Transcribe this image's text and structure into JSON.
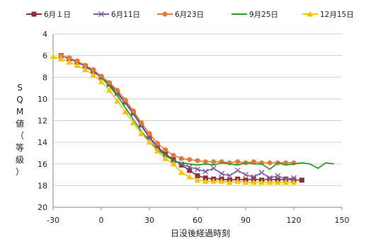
{
  "chart_data": {
    "type": "line",
    "title": "",
    "xlabel": "日没後経過時刻",
    "ylabel_chars": [
      "S",
      "Q",
      "M",
      "値",
      "（",
      "等",
      "級",
      "）"
    ],
    "xlim": [
      -30,
      150
    ],
    "ylim": [
      4,
      20
    ],
    "y_reversed": true,
    "x_ticks": [
      -30,
      0,
      30,
      60,
      90,
      120,
      150
    ],
    "y_ticks": [
      4,
      6,
      8,
      10,
      12,
      14,
      16,
      18,
      20
    ],
    "grid": "horizontal",
    "legend_position": "top",
    "series": [
      {
        "name": "6月１日",
        "color": "#8b2e3a",
        "marker": "square",
        "points": [
          [
            -25,
            6.0
          ],
          [
            -20,
            6.3
          ],
          [
            -15,
            6.6
          ],
          [
            -10,
            7.0
          ],
          [
            -5,
            7.4
          ],
          [
            0,
            8.0
          ],
          [
            5,
            8.6
          ],
          [
            10,
            9.4
          ],
          [
            15,
            10.3
          ],
          [
            20,
            11.3
          ],
          [
            25,
            12.4
          ],
          [
            30,
            13.5
          ],
          [
            35,
            14.4
          ],
          [
            40,
            15.1
          ],
          [
            45,
            15.6
          ],
          [
            50,
            16.1
          ],
          [
            55,
            16.6
          ],
          [
            60,
            17.1
          ],
          [
            65,
            17.3
          ],
          [
            70,
            17.4
          ],
          [
            75,
            17.4
          ],
          [
            80,
            17.5
          ],
          [
            85,
            17.4
          ],
          [
            90,
            17.5
          ],
          [
            95,
            17.4
          ],
          [
            100,
            17.5
          ],
          [
            105,
            17.4
          ],
          [
            110,
            17.5
          ],
          [
            115,
            17.4
          ],
          [
            120,
            17.5
          ],
          [
            125,
            17.5
          ]
        ]
      },
      {
        "name": "6月11日",
        "color": "#7b5ea7",
        "marker": "x",
        "points": [
          [
            -25,
            6.0
          ],
          [
            -20,
            6.3
          ],
          [
            -15,
            6.6
          ],
          [
            -10,
            7.0
          ],
          [
            -5,
            7.5
          ],
          [
            0,
            8.0
          ],
          [
            5,
            8.7
          ],
          [
            10,
            9.5
          ],
          [
            15,
            10.4
          ],
          [
            20,
            11.4
          ],
          [
            25,
            12.5
          ],
          [
            30,
            13.6
          ],
          [
            35,
            14.5
          ],
          [
            40,
            15.2
          ],
          [
            45,
            15.7
          ],
          [
            50,
            16.0
          ],
          [
            55,
            16.3
          ],
          [
            60,
            16.5
          ],
          [
            65,
            16.7
          ],
          [
            70,
            16.4
          ],
          [
            75,
            16.9
          ],
          [
            80,
            17.1
          ],
          [
            85,
            16.6
          ],
          [
            90,
            17.0
          ],
          [
            95,
            17.2
          ],
          [
            100,
            16.8
          ],
          [
            105,
            17.3
          ],
          [
            110,
            17.1
          ],
          [
            115,
            17.4
          ],
          [
            120,
            17.3
          ]
        ]
      },
      {
        "name": "6月23日",
        "color": "#e07b39",
        "marker": "circle",
        "points": [
          [
            -25,
            6.0
          ],
          [
            -20,
            6.2
          ],
          [
            -15,
            6.5
          ],
          [
            -10,
            6.9
          ],
          [
            -5,
            7.3
          ],
          [
            0,
            7.9
          ],
          [
            5,
            8.5
          ],
          [
            10,
            9.2
          ],
          [
            15,
            10.1
          ],
          [
            20,
            11.1
          ],
          [
            25,
            12.2
          ],
          [
            30,
            13.2
          ],
          [
            35,
            14.1
          ],
          [
            40,
            14.7
          ],
          [
            45,
            15.2
          ],
          [
            50,
            15.5
          ],
          [
            55,
            15.6
          ],
          [
            60,
            15.7
          ],
          [
            65,
            15.8
          ],
          [
            70,
            15.8
          ],
          [
            75,
            15.8
          ],
          [
            80,
            15.9
          ],
          [
            85,
            15.8
          ],
          [
            90,
            15.9
          ],
          [
            95,
            15.8
          ],
          [
            100,
            15.9
          ],
          [
            105,
            15.9
          ],
          [
            110,
            15.9
          ],
          [
            115,
            15.9
          ],
          [
            120,
            15.9
          ]
        ]
      },
      {
        "name": "9月25日",
        "color": "#2ca02c",
        "marker": "none",
        "points": [
          [
            0,
            8.0
          ],
          [
            5,
            8.8
          ],
          [
            10,
            9.7
          ],
          [
            15,
            10.8
          ],
          [
            20,
            11.9
          ],
          [
            25,
            13.0
          ],
          [
            30,
            13.9
          ],
          [
            35,
            14.7
          ],
          [
            40,
            15.2
          ],
          [
            45,
            15.7
          ],
          [
            50,
            15.9
          ],
          [
            55,
            16.0
          ],
          [
            60,
            16.1
          ],
          [
            65,
            16.0
          ],
          [
            70,
            16.1
          ],
          [
            75,
            15.9
          ],
          [
            80,
            16.0
          ],
          [
            85,
            16.1
          ],
          [
            90,
            15.9
          ],
          [
            95,
            16.0
          ],
          [
            100,
            16.0
          ],
          [
            105,
            16.5
          ],
          [
            110,
            15.9
          ],
          [
            115,
            16.1
          ],
          [
            120,
            16.0
          ],
          [
            125,
            15.9
          ],
          [
            130,
            16.0
          ],
          [
            135,
            16.4
          ],
          [
            140,
            15.9
          ],
          [
            145,
            16.0
          ]
        ]
      },
      {
        "name": "12月15日",
        "color": "#f1c40f",
        "marker": "triangle",
        "points": [
          [
            -30,
            6.1
          ],
          [
            -25,
            6.3
          ],
          [
            -20,
            6.6
          ],
          [
            -15,
            6.9
          ],
          [
            -10,
            7.3
          ],
          [
            -5,
            7.8
          ],
          [
            0,
            8.4
          ],
          [
            5,
            9.2
          ],
          [
            10,
            10.2
          ],
          [
            15,
            11.2
          ],
          [
            20,
            12.2
          ],
          [
            25,
            13.2
          ],
          [
            30,
            14.0
          ],
          [
            35,
            14.8
          ],
          [
            40,
            15.5
          ],
          [
            45,
            16.0
          ],
          [
            50,
            16.8
          ],
          [
            55,
            17.2
          ],
          [
            60,
            17.5
          ],
          [
            65,
            17.6
          ],
          [
            70,
            17.6
          ],
          [
            75,
            17.6
          ],
          [
            80,
            17.7
          ],
          [
            85,
            17.6
          ],
          [
            90,
            17.7
          ],
          [
            95,
            17.7
          ],
          [
            100,
            17.7
          ],
          [
            105,
            17.7
          ],
          [
            110,
            17.7
          ],
          [
            115,
            17.7
          ],
          [
            120,
            17.7
          ]
        ]
      }
    ]
  }
}
